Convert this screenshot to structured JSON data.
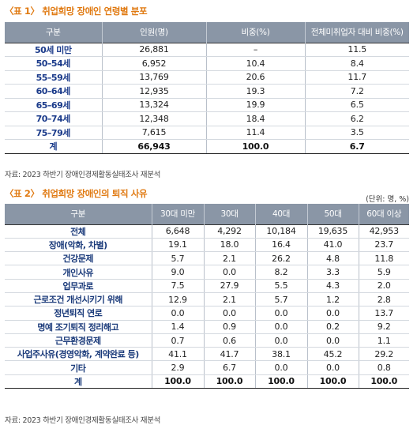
{
  "table1": {
    "title": "〈표 1〉 취업희망 장애인 연령별 분포",
    "headers": [
      "구분",
      "인원(명)",
      "비중(%)",
      "전체미취업자 대비 비중(%)"
    ],
    "rows": [
      [
        "50세 미만",
        "26,881",
        "–",
        "11.5"
      ],
      [
        "50–54세",
        "6,952",
        "10.4",
        "8.4"
      ],
      [
        "55–59세",
        "13,769",
        "20.6",
        "11.7"
      ],
      [
        "60–64세",
        "12,935",
        "19.3",
        "7.2"
      ],
      [
        "65–69세",
        "13,324",
        "19.9",
        "6.5"
      ],
      [
        "70–74세",
        "12,348",
        "18.4",
        "6.2"
      ],
      [
        "75–79세",
        "7,615",
        "11.4",
        "3.5"
      ]
    ],
    "total": [
      "계",
      "66,943",
      "100.0",
      "6.7"
    ],
    "source": "자료: 2023 하반기 장애인경제활동실태조사 재분석"
  },
  "table2": {
    "title": "〈표 2〉 취업희망 장애인의 퇴직 사유",
    "unit": "(단위: 명, %)",
    "headers": [
      "구분",
      "30대 미만",
      "30대",
      "40대",
      "50대",
      "60대 이상"
    ],
    "rows": [
      [
        "전체",
        "6,648",
        "4,292",
        "10,184",
        "19,635",
        "42,953"
      ],
      [
        "장애(악화, 차별)",
        "19.1",
        "18.0",
        "16.4",
        "41.0",
        "23.7"
      ],
      [
        "건강문제",
        "5.7",
        "2.1",
        "26.2",
        "4.8",
        "11.8"
      ],
      [
        "개인사유",
        "9.0",
        "0.0",
        "8.2",
        "3.3",
        "5.9"
      ],
      [
        "업무과로",
        "7.5",
        "27.9",
        "5.5",
        "4.3",
        "2.0"
      ],
      [
        "근로조건 개선시키기 위해",
        "12.9",
        "2.1",
        "5.7",
        "1.2",
        "2.8"
      ],
      [
        "정년퇴직 연로",
        "0.0",
        "0.0",
        "0.0",
        "0.0",
        "13.7"
      ],
      [
        "명예 조기퇴직 정리해고",
        "1.4",
        "0.9",
        "0.0",
        "0.2",
        "9.2"
      ],
      [
        "근무환경문제",
        "0.7",
        "0.6",
        "0.0",
        "0.0",
        "1.1"
      ],
      [
        "사업주사유(경영악화, 계약완료 등)",
        "41.1",
        "41.7",
        "38.1",
        "45.2",
        "29.2"
      ],
      [
        "기타",
        "2.9",
        "6.7",
        "0.0",
        "0.0",
        "0.8"
      ]
    ],
    "total": [
      "계",
      "100.0",
      "100.0",
      "100.0",
      "100.0",
      "100.0"
    ],
    "source": "자료: 2023 하반기 장애인경제활동실태조사 재분석"
  }
}
